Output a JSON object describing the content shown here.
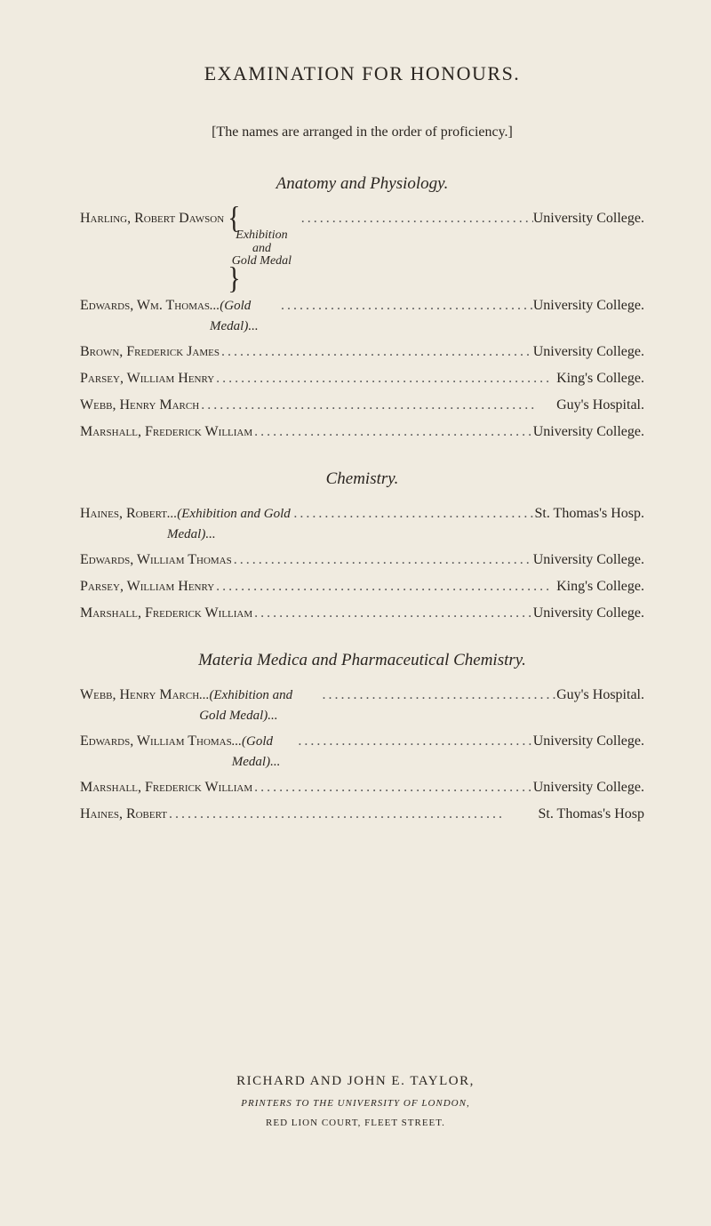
{
  "title": "EXAMINATION FOR HONOURS.",
  "subtitle": "[The names are arranged in the order of proficiency.]",
  "sections": [
    {
      "heading": "Anatomy and Physiology.",
      "entries": [
        {
          "name": "Harling, Robert Dawson",
          "award": "Exhibition and Gold Medal",
          "award_style": "brace",
          "institution": "University College."
        },
        {
          "name": "Edwards, Wm. Thomas",
          "award": "(Gold Medal)",
          "award_style": "inline",
          "institution": "University College."
        },
        {
          "name": "Brown, Frederick James",
          "award": "",
          "award_style": "none",
          "institution": "University College."
        },
        {
          "name": "Parsey, William Henry",
          "award": "",
          "award_style": "none",
          "institution": "King's College."
        },
        {
          "name": "Webb, Henry March",
          "award": "",
          "award_style": "none",
          "institution": "Guy's Hospital."
        },
        {
          "name": "Marshall, Frederick William",
          "award": "",
          "award_style": "none",
          "institution": "University College."
        }
      ]
    },
    {
      "heading": "Chemistry.",
      "entries": [
        {
          "name": "Haines, Robert",
          "award": "(Exhibition and Gold Medal)",
          "award_style": "inline",
          "institution": "St. Thomas's Hosp."
        },
        {
          "name": "Edwards, William Thomas",
          "award": "",
          "award_style": "none",
          "institution": "University College."
        },
        {
          "name": "Parsey, William Henry",
          "award": "",
          "award_style": "none",
          "institution": "King's College."
        },
        {
          "name": "Marshall, Frederick William",
          "award": "",
          "award_style": "none",
          "institution": "University College."
        }
      ]
    },
    {
      "heading": "Materia Medica and Pharmaceutical Chemistry.",
      "entries": [
        {
          "name": "Webb, Henry March",
          "award": "(Exhibition and Gold Medal)",
          "award_style": "inline",
          "institution": "Guy's Hospital."
        },
        {
          "name": "Edwards, William Thomas",
          "award": "(Gold Medal)",
          "award_style": "inline",
          "institution": "University College."
        },
        {
          "name": "Marshall, Frederick William",
          "award": "",
          "award_style": "none",
          "institution": "University College."
        },
        {
          "name": "Haines, Robert",
          "award": "",
          "award_style": "none",
          "institution": "St. Thomas's Hosp"
        }
      ]
    }
  ],
  "footer": {
    "printer": "RICHARD AND JOHN E. TAYLOR,",
    "role": "PRINTERS TO THE UNIVERSITY OF LONDON,",
    "address": "RED LION COURT, FLEET STREET."
  },
  "leader_dots": "......................................................"
}
